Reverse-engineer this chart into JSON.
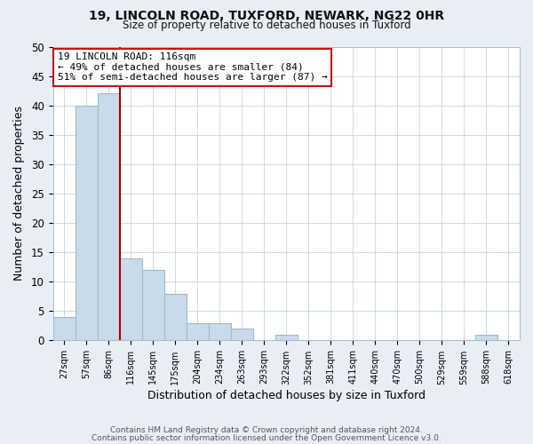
{
  "title1": "19, LINCOLN ROAD, TUXFORD, NEWARK, NG22 0HR",
  "title2": "Size of property relative to detached houses in Tuxford",
  "xlabel": "Distribution of detached houses by size in Tuxford",
  "ylabel": "Number of detached properties",
  "bar_labels": [
    "27sqm",
    "57sqm",
    "86sqm",
    "116sqm",
    "145sqm",
    "175sqm",
    "204sqm",
    "234sqm",
    "263sqm",
    "293sqm",
    "322sqm",
    "352sqm",
    "381sqm",
    "411sqm",
    "440sqm",
    "470sqm",
    "500sqm",
    "529sqm",
    "559sqm",
    "588sqm",
    "618sqm"
  ],
  "bar_values": [
    4,
    40,
    42,
    14,
    12,
    8,
    3,
    3,
    2,
    0,
    1,
    0,
    0,
    0,
    0,
    0,
    0,
    0,
    0,
    1,
    0
  ],
  "bar_color": "#c9daea",
  "bar_edge_color": "#9bbcd6",
  "vline_color": "#aa0000",
  "annotation_title": "19 LINCOLN ROAD: 116sqm",
  "annotation_line1": "← 49% of detached houses are smaller (84)",
  "annotation_line2": "51% of semi-detached houses are larger (87) →",
  "annotation_box_color": "#ffffff",
  "annotation_box_edge": "#cc1111",
  "ylim": [
    0,
    50
  ],
  "yticks": [
    0,
    5,
    10,
    15,
    20,
    25,
    30,
    35,
    40,
    45,
    50
  ],
  "footer1": "Contains HM Land Registry data © Crown copyright and database right 2024.",
  "footer2": "Contains public sector information licensed under the Open Government Licence v3.0.",
  "bg_color": "#e8eef4",
  "plot_bg_color": "#ffffff",
  "grid_color": "#c8d4e0"
}
